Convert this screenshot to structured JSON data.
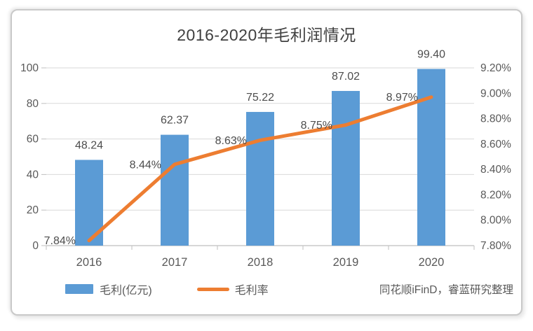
{
  "title": "2016-2020年毛利润情况",
  "source_note": "同花顺iFinD，睿蓝研究整理",
  "legend": {
    "items": [
      {
        "label": "毛利(亿元)",
        "color": "#5B9BD5",
        "shape": "rect"
      },
      {
        "label": "毛利率",
        "color": "#ED7D31",
        "shape": "line"
      }
    ]
  },
  "colors": {
    "bar": "#5B9BD5",
    "line": "#ED7D31",
    "gridline": "#D9D9D9",
    "axis": "#BFBFBF",
    "axis_text": "#595959",
    "data_label_text": "#4d4d4d",
    "title_text": "#404040",
    "frame_border": "#c9c9c9"
  },
  "chart_data": {
    "type": "bar",
    "subtype": "bar-line-combo",
    "title": "2016-2020年毛利润情况",
    "categories": [
      "2016",
      "2017",
      "2018",
      "2019",
      "2020"
    ],
    "series": [
      {
        "name": "毛利(亿元)",
        "type": "bar",
        "axis": "left",
        "values": [
          48.24,
          62.37,
          75.22,
          87.02,
          99.4
        ],
        "labels": [
          "48.24",
          "62.37",
          "75.22",
          "87.02",
          "99.40"
        ],
        "color": "#5B9BD5"
      },
      {
        "name": "毛利率",
        "type": "line",
        "axis": "right",
        "values": [
          7.84,
          8.44,
          8.63,
          8.75,
          8.97
        ],
        "labels": [
          "7.84%",
          "8.44%",
          "8.63%",
          "8.75%",
          "8.97%"
        ],
        "color": "#ED7D31"
      }
    ],
    "left_axis": {
      "min": 0,
      "max": 100,
      "step": 20,
      "ticks": [
        "0",
        "20",
        "40",
        "60",
        "80",
        "100"
      ]
    },
    "right_axis": {
      "min": 7.8,
      "max": 9.2,
      "step": 0.2,
      "ticks": [
        "7.80%",
        "8.00%",
        "8.20%",
        "8.40%",
        "8.60%",
        "8.80%",
        "9.00%",
        "9.20%"
      ]
    },
    "grid": true,
    "legend_position": "bottom",
    "xlabel": "",
    "ylabel": ""
  }
}
